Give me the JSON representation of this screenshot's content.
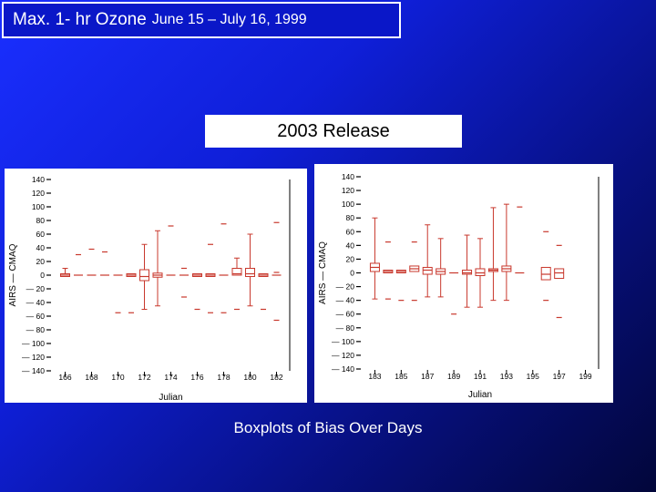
{
  "header": {
    "title_main": "Max. 1- hr Ozone",
    "title_sub": "June 15 – July 16, 1999"
  },
  "release_label": "2003 Release",
  "caption": "Boxplots of Bias Over Days",
  "colors": {
    "box": "#c8382d",
    "axis": "#000000",
    "title_bg": "#0a17c8"
  },
  "chart_data": [
    {
      "type": "boxplot",
      "xlabel": "Julian",
      "ylabel": "AIRS — CMAQ",
      "ylim": [
        -140,
        140
      ],
      "yticks": [
        140,
        120,
        100,
        80,
        60,
        40,
        20,
        0,
        -20,
        -40,
        -60,
        -80,
        -100,
        -120,
        -140
      ],
      "xlim": [
        165,
        183
      ],
      "xticks": [
        166,
        168,
        170,
        172,
        174,
        176,
        178,
        180,
        182
      ],
      "x_tick_labels": [
        "166",
        "168",
        "170",
        "172",
        "174",
        "176",
        "178",
        "180",
        "182"
      ],
      "boxes": [
        {
          "x": 166,
          "q1": -2,
          "median": 0,
          "q3": 2,
          "whisker_low": -2,
          "whisker_high": 10,
          "outliers": []
        },
        {
          "x": 167,
          "q1": 0,
          "median": 0,
          "q3": 0,
          "whisker_low": 0,
          "whisker_high": 0,
          "outliers": [
            30
          ]
        },
        {
          "x": 168,
          "q1": 0,
          "median": 0,
          "q3": 0,
          "whisker_low": 0,
          "whisker_high": 0,
          "outliers": [
            38
          ]
        },
        {
          "x": 169,
          "q1": 0,
          "median": 0,
          "q3": 0,
          "whisker_low": 0,
          "whisker_high": 0,
          "outliers": [
            34
          ]
        },
        {
          "x": 170,
          "q1": 0,
          "median": 0,
          "q3": 0,
          "whisker_low": 0,
          "whisker_high": 0,
          "outliers": [
            -55
          ]
        },
        {
          "x": 171,
          "q1": -2,
          "median": 0,
          "q3": 2,
          "whisker_low": -2,
          "whisker_high": 2,
          "outliers": [
            -55
          ]
        },
        {
          "x": 172,
          "q1": -8,
          "median": -2,
          "q3": 8,
          "whisker_low": -50,
          "whisker_high": 45,
          "outliers": []
        },
        {
          "x": 173,
          "q1": -3,
          "median": 0,
          "q3": 3,
          "whisker_low": -45,
          "whisker_high": 65,
          "outliers": []
        },
        {
          "x": 174,
          "q1": 0,
          "median": 0,
          "q3": 0,
          "whisker_low": 0,
          "whisker_high": 0,
          "outliers": [
            72
          ]
        },
        {
          "x": 175,
          "q1": 0,
          "median": 0,
          "q3": 0,
          "whisker_low": 0,
          "whisker_high": 0,
          "outliers": [
            10,
            -32
          ]
        },
        {
          "x": 176,
          "q1": -2,
          "median": 0,
          "q3": 2,
          "whisker_low": -2,
          "whisker_high": 2,
          "outliers": [
            -50
          ]
        },
        {
          "x": 177,
          "q1": -2,
          "median": 0,
          "q3": 2,
          "whisker_low": -2,
          "whisker_high": 2,
          "outliers": [
            45,
            -55
          ]
        },
        {
          "x": 178,
          "q1": 0,
          "median": 0,
          "q3": 0,
          "whisker_low": 0,
          "whisker_high": 0,
          "outliers": [
            75,
            -55
          ]
        },
        {
          "x": 179,
          "q1": 0,
          "median": 2,
          "q3": 10,
          "whisker_low": 0,
          "whisker_high": 25,
          "outliers": [
            -50
          ]
        },
        {
          "x": 180,
          "q1": -2,
          "median": 2,
          "q3": 10,
          "whisker_low": -45,
          "whisker_high": 60,
          "outliers": []
        },
        {
          "x": 181,
          "q1": -2,
          "median": 0,
          "q3": 2,
          "whisker_low": -2,
          "whisker_high": 2,
          "outliers": [
            -50
          ]
        },
        {
          "x": 182,
          "q1": 0,
          "median": 0,
          "q3": 0,
          "whisker_low": 0,
          "whisker_high": 0,
          "outliers": [
            77,
            4,
            -66
          ]
        }
      ]
    },
    {
      "type": "boxplot",
      "xlabel": "Julian",
      "ylabel": "AIRS — CMAQ",
      "ylim": [
        -140,
        140
      ],
      "yticks": [
        140,
        120,
        100,
        80,
        60,
        40,
        20,
        0,
        -20,
        -40,
        -60,
        -80,
        -100,
        -120,
        -140
      ],
      "xlim": [
        182,
        200
      ],
      "xticks": [
        183,
        185,
        187,
        189,
        191,
        193,
        195,
        197,
        199
      ],
      "x_tick_labels": [
        "183",
        "185",
        "187",
        "189",
        "191",
        "193",
        "195",
        "197",
        "199"
      ],
      "boxes": [
        {
          "x": 183,
          "q1": 2,
          "median": 8,
          "q3": 14,
          "whisker_low": -38,
          "whisker_high": 80,
          "outliers": []
        },
        {
          "x": 184,
          "q1": 0,
          "median": 2,
          "q3": 4,
          "whisker_low": 0,
          "whisker_high": 4,
          "outliers": [
            45,
            -38
          ]
        },
        {
          "x": 185,
          "q1": 0,
          "median": 2,
          "q3": 4,
          "whisker_low": 0,
          "whisker_high": 4,
          "outliers": [
            -40
          ]
        },
        {
          "x": 186,
          "q1": 2,
          "median": 6,
          "q3": 10,
          "whisker_low": 2,
          "whisker_high": 10,
          "outliers": [
            45,
            -40
          ]
        },
        {
          "x": 187,
          "q1": -2,
          "median": 4,
          "q3": 8,
          "whisker_low": -35,
          "whisker_high": 70,
          "outliers": []
        },
        {
          "x": 188,
          "q1": -2,
          "median": 2,
          "q3": 6,
          "whisker_low": -35,
          "whisker_high": 50,
          "outliers": []
        },
        {
          "x": 189,
          "q1": 0,
          "median": 0,
          "q3": 0,
          "whisker_low": 0,
          "whisker_high": 0,
          "outliers": [
            -60
          ]
        },
        {
          "x": 190,
          "q1": -2,
          "median": 0,
          "q3": 4,
          "whisker_low": -50,
          "whisker_high": 55,
          "outliers": []
        },
        {
          "x": 191,
          "q1": -4,
          "median": 0,
          "q3": 6,
          "whisker_low": -50,
          "whisker_high": 50,
          "outliers": []
        },
        {
          "x": 192,
          "q1": 2,
          "median": 4,
          "q3": 6,
          "whisker_low": -40,
          "whisker_high": 95,
          "outliers": []
        },
        {
          "x": 193,
          "q1": 2,
          "median": 6,
          "q3": 10,
          "whisker_low": -40,
          "whisker_high": 100,
          "outliers": []
        },
        {
          "x": 194,
          "q1": 0,
          "median": 0,
          "q3": 0,
          "whisker_low": 0,
          "whisker_high": 0,
          "outliers": [
            96
          ]
        },
        {
          "x": 196,
          "q1": -10,
          "median": -2,
          "q3": 8,
          "whisker_low": -10,
          "whisker_high": 8,
          "outliers": [
            60,
            -40
          ]
        },
        {
          "x": 197,
          "q1": -8,
          "median": 0,
          "q3": 6,
          "whisker_low": -8,
          "whisker_high": 6,
          "outliers": [
            40,
            -65
          ]
        }
      ]
    }
  ]
}
